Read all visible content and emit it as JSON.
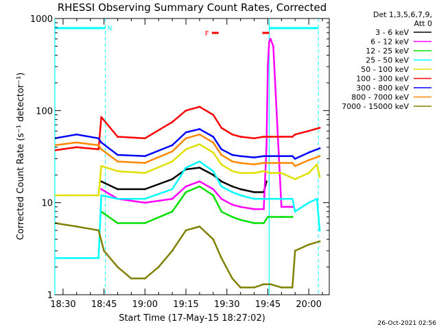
{
  "chart_data": {
    "type": "line",
    "title": "RHESSI Observing Summary Count Rates, Corrected",
    "xlabel": "Start Time (17-May-15 18:27:02)",
    "ylabel": "Corrected Count Rate (s⁻¹ detector⁻¹)",
    "yscale": "log",
    "ylim": [
      1,
      1000
    ],
    "xlim_minutes": [
      -3,
      97.5
    ],
    "x_ticks": [
      {
        "m": 0,
        "label": "18:30"
      },
      {
        "m": 15,
        "label": "18:45"
      },
      {
        "m": 30,
        "label": "19:00"
      },
      {
        "m": 45,
        "label": "19:15"
      },
      {
        "m": 60,
        "label": "19:30"
      },
      {
        "m": 75,
        "label": "19:45"
      },
      {
        "m": 90,
        "label": "20:00"
      }
    ],
    "y_ticks": [
      {
        "v": 1,
        "label": "1"
      },
      {
        "v": 10,
        "label": "10"
      },
      {
        "v": 100,
        "label": "100"
      },
      {
        "v": 1000,
        "label": "1000"
      }
    ],
    "legend_header": [
      "Det 1,3,5,6,7,9,",
      "Att 0"
    ],
    "legend_placement": "right",
    "annotations": {
      "night_label": "N",
      "flare_label": "F",
      "timestamp": "26-Oct-2021 02:56"
    },
    "series": [
      {
        "name": "3 - 6 keV",
        "color": "#000000",
        "x": [
          0,
          13,
          14,
          20,
          30,
          40,
          45,
          50,
          55,
          58,
          62,
          65,
          70,
          73.5,
          74.5
        ],
        "y": [
          null,
          null,
          17,
          14,
          14,
          18,
          23,
          24,
          20,
          17,
          15,
          14,
          13,
          13,
          17
        ]
      },
      {
        "name": "6 - 12 keV",
        "color": "#ff00ff",
        "x": [
          13,
          14,
          20,
          30,
          40,
          45,
          50,
          55,
          58,
          62,
          65,
          70,
          73.5,
          74.5,
          75,
          75.5,
          76,
          77,
          80,
          84,
          85
        ],
        "y": [
          null,
          14,
          11,
          10,
          11,
          15,
          17,
          14,
          11,
          9.5,
          9,
          8.5,
          8.5,
          40,
          300,
          560,
          600,
          500,
          9,
          9,
          null
        ]
      },
      {
        "name": "12 - 25 keV",
        "color": "#00e000",
        "x": [
          13,
          14,
          20,
          30,
          40,
          45,
          50,
          55,
          58,
          62,
          65,
          70,
          73.5,
          75,
          80,
          84
        ],
        "y": [
          null,
          8,
          6,
          6,
          8,
          13,
          15,
          12,
          8,
          7,
          6.5,
          6,
          6,
          7,
          7,
          7
        ]
      },
      {
        "name": "25 - 50 keV",
        "color": "#00ffff",
        "x": [
          -3,
          13,
          14,
          20,
          30,
          40,
          45,
          50,
          55,
          58,
          62,
          65,
          70,
          73.5,
          76,
          80,
          84,
          85,
          90,
          93,
          94
        ],
        "y": [
          2.5,
          2.5,
          12,
          11,
          11,
          14,
          24,
          28,
          22,
          15,
          13,
          12,
          11,
          11,
          11,
          11,
          11,
          8,
          10,
          11,
          5
        ]
      },
      {
        "name": "50 - 100 keV",
        "color": "#e0e000",
        "x": [
          -3,
          13,
          14,
          20,
          30,
          40,
          45,
          50,
          55,
          58,
          62,
          65,
          70,
          73.5,
          76,
          80,
          85,
          90,
          93,
          94
        ],
        "y": [
          12,
          12,
          25,
          22,
          21,
          28,
          38,
          43,
          35,
          26,
          22,
          21,
          21,
          22,
          21,
          21,
          18,
          21,
          26,
          19
        ]
      },
      {
        "name": "100 - 300 keV",
        "color": "#ff0000",
        "x": [
          -3,
          5,
          13,
          14,
          20,
          30,
          40,
          45,
          50,
          55,
          58,
          62,
          65,
          70,
          73.5,
          76,
          80,
          84,
          85,
          90,
          94
        ],
        "y": [
          37,
          40,
          38,
          85,
          52,
          50,
          75,
          100,
          110,
          90,
          65,
          55,
          52,
          50,
          52,
          52,
          52,
          52,
          55,
          60,
          65
        ]
      },
      {
        "name": "300 - 800 keV",
        "color": "#0000ff",
        "x": [
          -3,
          5,
          13,
          14,
          20,
          30,
          40,
          45,
          50,
          55,
          58,
          62,
          65,
          70,
          73.5,
          76,
          80,
          84,
          85,
          90,
          94
        ],
        "y": [
          50,
          55,
          50,
          45,
          33,
          32,
          42,
          58,
          63,
          52,
          38,
          33,
          32,
          31,
          32,
          32,
          32,
          32,
          30,
          35,
          39
        ]
      },
      {
        "name": "800 - 7000 keV",
        "color": "#ff8800",
        "x": [
          -3,
          5,
          13,
          14,
          20,
          30,
          40,
          45,
          50,
          55,
          58,
          62,
          65,
          70,
          73.5,
          76,
          80,
          84,
          85,
          90,
          94
        ],
        "y": [
          42,
          45,
          42,
          38,
          28,
          27,
          36,
          50,
          55,
          45,
          33,
          28,
          27,
          26,
          27,
          27,
          27,
          27,
          25,
          29,
          32
        ]
      },
      {
        "name": "7000 - 15000 keV",
        "color": "#808000",
        "x": [
          -3,
          5,
          13,
          15,
          20,
          25,
          30,
          35,
          40,
          45,
          50,
          55,
          58,
          62,
          65,
          70,
          73.5,
          76,
          80,
          84,
          85,
          90,
          94
        ],
        "y": [
          6,
          5.5,
          5,
          3,
          2,
          1.5,
          1.5,
          2,
          3,
          5,
          5.5,
          4,
          2.5,
          1.5,
          1.2,
          1.2,
          1.3,
          1.3,
          1.2,
          1.2,
          3,
          3.5,
          3.8
        ]
      }
    ],
    "overlays": {
      "night_bar": {
        "color": "#00ffff",
        "start": -3,
        "end": 15.5
      },
      "day_bar": {
        "color": "#00ffff",
        "start": 75.5,
        "end": 93.5
      },
      "flare_bars": {
        "color": "#ff0000",
        "intervals": [
          [
            54.5,
            57
          ],
          [
            73,
            75.5
          ]
        ]
      },
      "dashed_lines": [
        15.5,
        93.5
      ],
      "solid_lines": [
        -3,
        75.5
      ]
    }
  }
}
